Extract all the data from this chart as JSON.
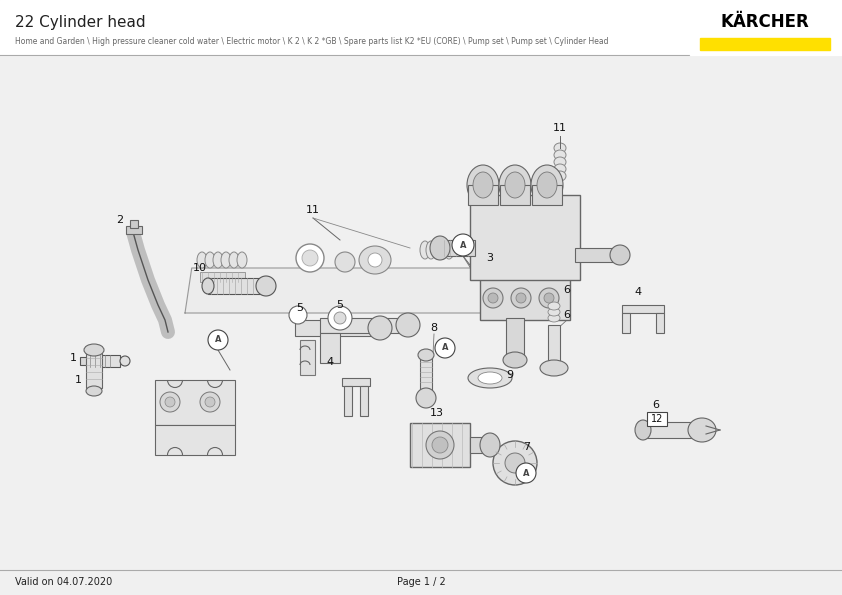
{
  "title": "22 Cylinder head",
  "subtitle": "Home and Garden \\ High pressure cleaner cold water \\ Electric motor \\ K 2 \\ K 2 *GB \\ Spare parts list K2 *EU (CORE) \\ Pump set \\ Pump set \\ Cylinder Head",
  "brand": "KÄRCHER",
  "brand_yellow": "#FFE000",
  "footer_left": "Valid on 04.07.2020",
  "footer_center": "Page 1 / 2",
  "bg_color": "#f0f0f0",
  "line_color": "#555555",
  "text_color": "#222222",
  "title_fontsize": 11,
  "subtitle_fontsize": 5.5,
  "label_fontsize": 8
}
